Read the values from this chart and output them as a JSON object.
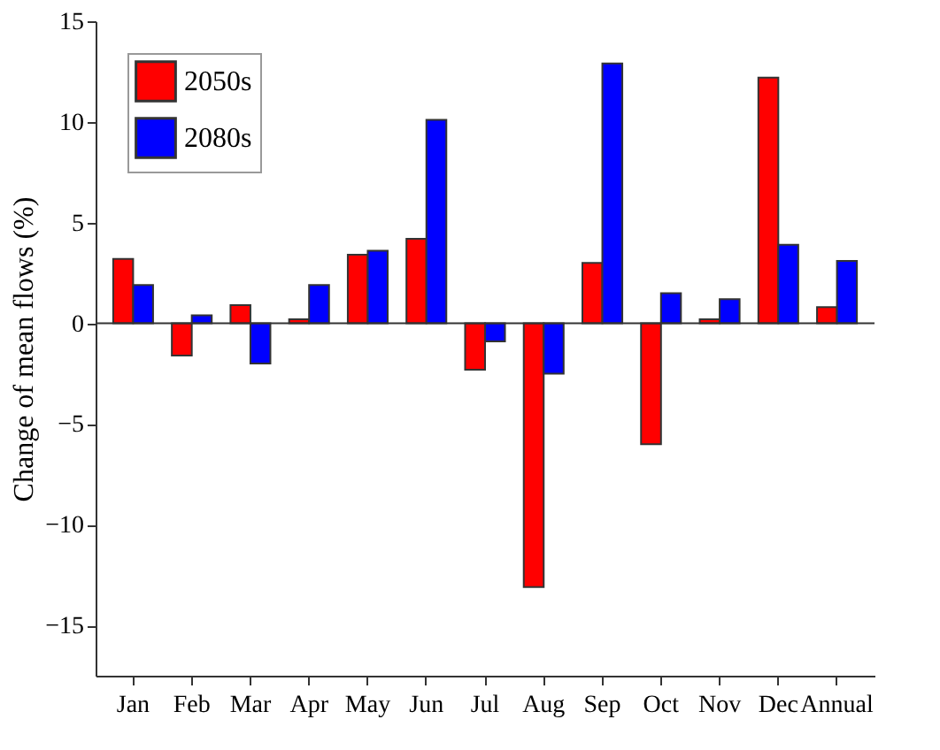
{
  "chart_data": {
    "type": "bar",
    "ylabel": "Change of mean flows (%)",
    "categories": [
      "Jan",
      "Feb",
      "Mar",
      "Apr",
      "May",
      "Jun",
      "Jul",
      "Aug",
      "Sep",
      "Oct",
      "Nov",
      "Dec",
      "Annual"
    ],
    "series": [
      {
        "name": "2050s",
        "color": "#ff0000",
        "values": [
          3.2,
          -1.6,
          0.9,
          0.2,
          3.4,
          4.2,
          -2.3,
          -13.1,
          3.0,
          -6.0,
          0.2,
          12.2,
          0.8
        ]
      },
      {
        "name": "2080s",
        "color": "#0000ff",
        "values": [
          1.9,
          0.4,
          -2.0,
          1.9,
          3.6,
          10.1,
          -0.9,
          -2.5,
          12.9,
          1.5,
          1.2,
          3.9,
          3.1
        ]
      }
    ],
    "ylim": [
      -17.5,
      15
    ],
    "yticks": [
      -15,
      -10,
      -5,
      0,
      5,
      10,
      15
    ],
    "grid": false,
    "ref_lines": [
      {
        "axis": "y",
        "value": 0
      }
    ],
    "legend": "top left"
  }
}
